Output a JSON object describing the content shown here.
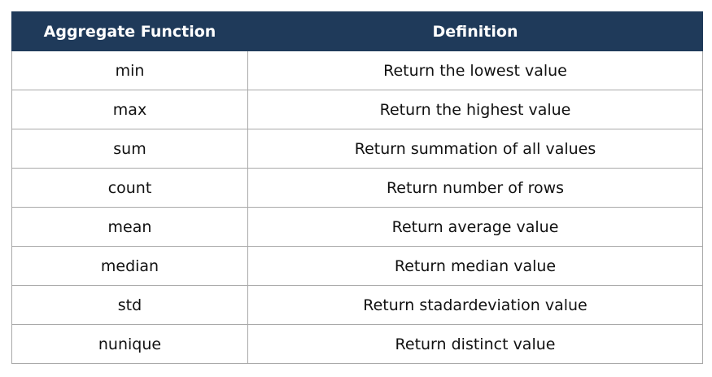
{
  "table": {
    "header": {
      "function_label": "Aggregate Function",
      "definition_label": "Definition"
    },
    "rows": [
      {
        "function": "min",
        "definition": "Return the lowest value"
      },
      {
        "function": "max",
        "definition": "Return the highest value"
      },
      {
        "function": "sum",
        "definition": "Return summation of all values"
      },
      {
        "function": "count",
        "definition": "Return number of rows"
      },
      {
        "function": "mean",
        "definition": "Return average value"
      },
      {
        "function": "median",
        "definition": "Return median value"
      },
      {
        "function": "std",
        "definition": "Return stadardeviation value"
      },
      {
        "function": "nunique",
        "definition": "Return distinct value"
      }
    ]
  },
  "colors": {
    "header_bg": "#1f3a5a",
    "header_text": "#ffffff",
    "border": "#a9a9a9"
  }
}
